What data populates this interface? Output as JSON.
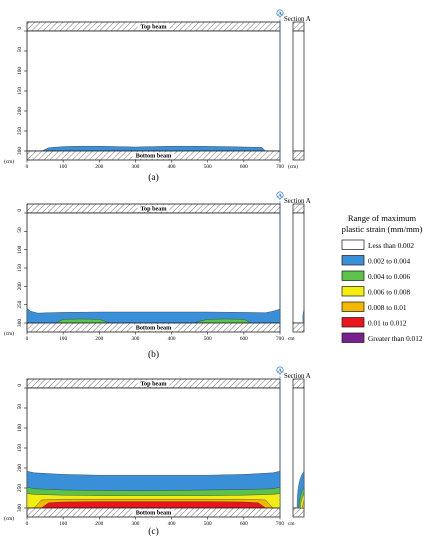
{
  "colors": {
    "less_than_0002": "#ffffff",
    "c0002_0004": "#3a8fd9",
    "c0004_0006": "#5cc24a",
    "c0006_0008": "#f2ee12",
    "c0008_001": "#f5b800",
    "c001_0012": "#e8141e",
    "greater_0012": "#7a1f8e",
    "outline": "#1a1a1a",
    "hatch": "#7a7a7a",
    "marker": "#1f6fd0"
  },
  "figure": {
    "top_beam_label": "Top beam",
    "bottom_beam_label": "Bottom beam",
    "section_label": "Section A",
    "section_marker": "A",
    "y_unit": "(cm)",
    "x_unit_a": "(cm)",
    "x_unit": "cm",
    "y_ticks": [
      "0",
      "50",
      "100",
      "150",
      "200",
      "250",
      "300"
    ],
    "x_ticks": [
      "0",
      "100",
      "200",
      "300",
      "400",
      "500",
      "600",
      "700"
    ]
  },
  "panels": [
    {
      "label": "(a)",
      "bands": [
        {
          "range": "0.002 to 0.004",
          "color_key": "c0002_0004",
          "top_cm": [
            300,
            292,
            289,
            288,
            288,
            289,
            290,
            289,
            288,
            288,
            289,
            291,
            300
          ],
          "bottom_cm": 300,
          "x_cm": [
            40,
            60,
            100,
            150,
            200,
            250,
            300,
            350,
            400,
            450,
            550,
            650,
            660
          ]
        }
      ]
    },
    {
      "label": "(b)",
      "bands": [
        {
          "range": "0.002 to 0.004",
          "color_key": "c0002_0004",
          "x_cm": [
            0,
            10,
            30,
            60,
            100,
            200,
            300,
            400,
            500,
            600,
            660,
            680,
            700
          ],
          "top_cm": [
            260,
            268,
            273,
            272,
            271,
            270,
            270,
            270,
            270,
            271,
            272,
            268,
            262
          ],
          "bottom_cm": 300
        },
        {
          "range": "0.004 to 0.006",
          "color_key": "c0004_0006",
          "x_cm": [
            80,
            100,
            150,
            200,
            230
          ],
          "top_cm": [
            300,
            290,
            289,
            290,
            300
          ],
          "bottom_cm": 300
        },
        {
          "range": "0.004 to 0.006",
          "color_key": "c0004_0006",
          "x_cm": [
            460,
            500,
            550,
            600,
            620
          ],
          "top_cm": [
            300,
            290,
            289,
            290,
            300
          ],
          "bottom_cm": 300
        }
      ]
    },
    {
      "label": "(c)",
      "bands": [
        {
          "range": "0.002 to 0.004",
          "color_key": "c0002_0004",
          "x_cm": [
            0,
            20,
            100,
            200,
            300,
            400,
            500,
            600,
            680,
            700
          ],
          "top_cm": [
            208,
            212,
            216,
            218,
            218,
            218,
            218,
            216,
            212,
            208
          ],
          "bottom_cm": 300
        },
        {
          "range": "0.004 to 0.006",
          "color_key": "c0004_0006",
          "x_cm": [
            0,
            20,
            100,
            200,
            300,
            400,
            500,
            600,
            680,
            700
          ],
          "top_cm": [
            248,
            252,
            255,
            256,
            257,
            256,
            255,
            254,
            252,
            248
          ],
          "bottom_cm": 300
        },
        {
          "range": "0.006 to 0.008",
          "color_key": "c0006_0008",
          "x_cm": [
            0,
            20,
            100,
            200,
            300,
            400,
            500,
            600,
            680,
            700
          ],
          "top_cm": [
            264,
            266,
            268,
            269,
            269,
            269,
            269,
            268,
            266,
            264
          ],
          "bottom_cm": 300
        },
        {
          "range": "0.008 to 0.01",
          "color_key": "c0008_001",
          "x_cm": [
            20,
            40,
            100,
            200,
            300,
            400,
            500,
            600,
            660,
            680
          ],
          "top_cm": [
            300,
            280,
            278,
            278,
            278,
            278,
            278,
            278,
            280,
            300
          ],
          "bottom_cm": 300
        },
        {
          "range": "0.01 to 0.012",
          "color_key": "c001_0012",
          "x_cm": [
            40,
            60,
            100,
            200,
            300,
            400,
            500,
            600,
            640,
            660
          ],
          "top_cm": [
            300,
            287,
            285,
            284,
            284,
            284,
            284,
            285,
            287,
            300
          ],
          "bottom_cm": 300
        }
      ]
    }
  ],
  "legend": {
    "title_line1": "Range of maximum",
    "title_line2": "plastic strain (mm/mm)",
    "items": [
      {
        "label": "Less than 0.002",
        "color_key": "less_than_0002"
      },
      {
        "label": "0.002 to 0.004",
        "color_key": "c0002_0004"
      },
      {
        "label": "0.004 to 0.006",
        "color_key": "c0004_0006"
      },
      {
        "label": "0.006 to 0.008",
        "color_key": "c0006_0008"
      },
      {
        "label": "0.008 to 0.01",
        "color_key": "c0008_001"
      },
      {
        "label": "0.01 to 0.012",
        "color_key": "c001_0012"
      },
      {
        "label": "Greater than 0.012",
        "color_key": "greater_0012"
      }
    ]
  }
}
